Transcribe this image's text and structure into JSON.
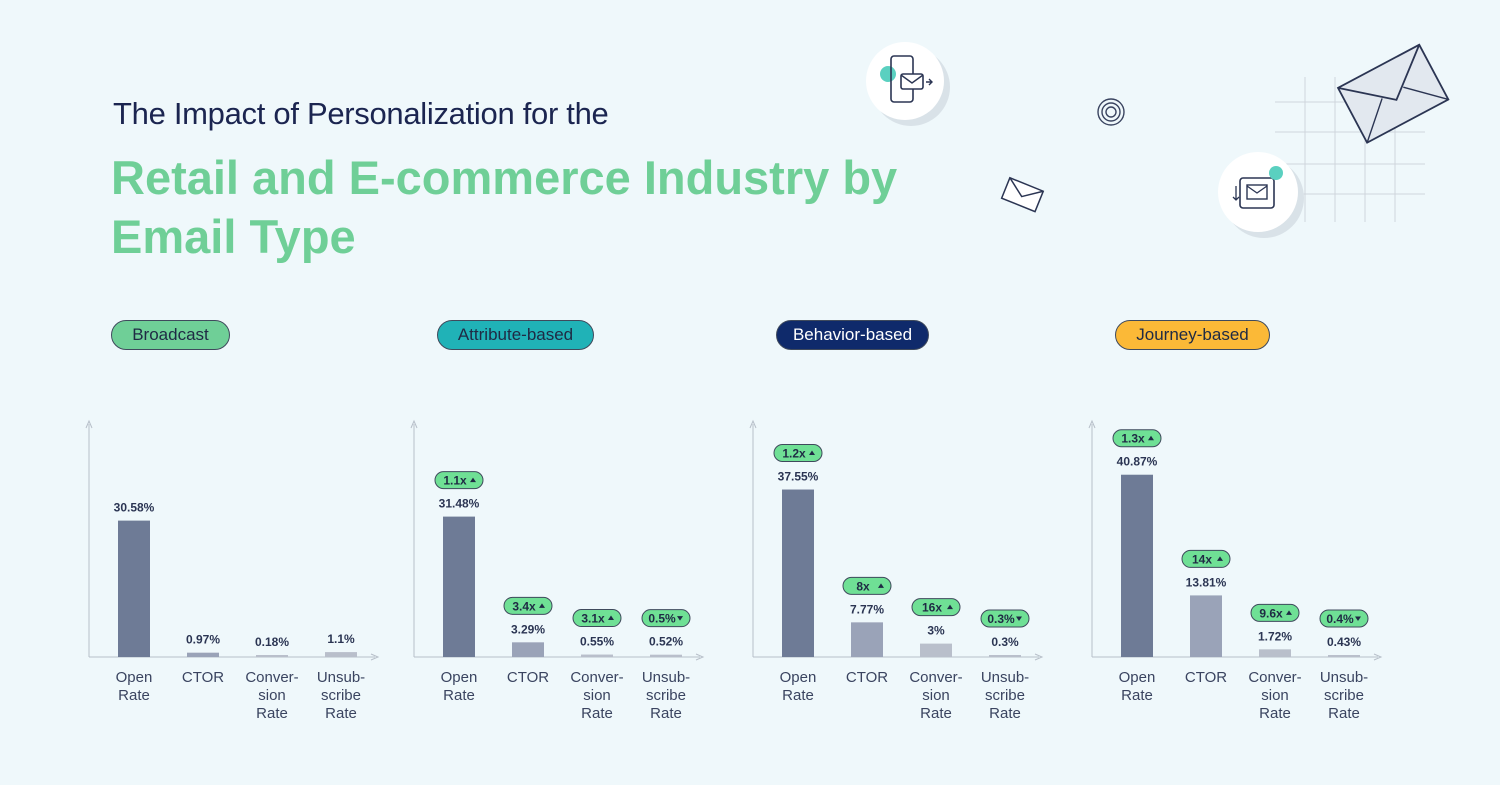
{
  "header": {
    "subtitle": "The Impact of Personalization for the",
    "title": "Retail and E-commerce Industry by Email Type"
  },
  "colors": {
    "title_green": "#6fcf97",
    "badge_green": "#6fe095",
    "bar_dark": "#6e7b96",
    "bar_mid": "#9aa3b8",
    "bar_light": "#b9bfcb"
  },
  "categories": [
    "Open Rate",
    "CTOR",
    "Conversion Rate",
    "Unsubscribe Rate"
  ],
  "chart_data": [
    {
      "type": "bar",
      "title": "Broadcast",
      "pill_color": "#6fcf97",
      "pill_text_color": "#1f2a44",
      "categories": [
        "Open Rate",
        "CTOR",
        "Conversion Rate",
        "Unsubscribe Rate"
      ],
      "values": [
        30.58,
        0.97,
        0.18,
        1.1
      ],
      "labels": [
        "30.58%",
        "0.97%",
        "0.18%",
        "1.1%"
      ],
      "badges": [
        null,
        null,
        null,
        null
      ]
    },
    {
      "type": "bar",
      "title": "Attribute-based",
      "pill_color": "#20b2b7",
      "pill_text_color": "#1f2a44",
      "categories": [
        "Open Rate",
        "CTOR",
        "Conversion Rate",
        "Unsubscribe Rate"
      ],
      "values": [
        31.48,
        3.29,
        0.55,
        0.52
      ],
      "labels": [
        "31.48%",
        "3.29%",
        "0.55%",
        "0.52%"
      ],
      "badges": [
        {
          "text": "1.1x",
          "dir": "up"
        },
        {
          "text": "3.4x",
          "dir": "up"
        },
        {
          "text": "3.1x",
          "dir": "up"
        },
        {
          "text": "0.5%",
          "dir": "down"
        }
      ]
    },
    {
      "type": "bar",
      "title": "Behavior-based",
      "pill_color": "#0f2a6b",
      "pill_text_color": "#ffffff",
      "categories": [
        "Open Rate",
        "CTOR",
        "Conversion Rate",
        "Unsubscribe Rate"
      ],
      "values": [
        37.55,
        7.77,
        3,
        0.3
      ],
      "labels": [
        "37.55%",
        "7.77%",
        "3%",
        "0.3%"
      ],
      "badges": [
        {
          "text": "1.2x",
          "dir": "up"
        },
        {
          "text": "8x",
          "dir": "up"
        },
        {
          "text": "16x",
          "dir": "up"
        },
        {
          "text": "0.3%",
          "dir": "down"
        }
      ]
    },
    {
      "type": "bar",
      "title": "Journey-based",
      "pill_color": "#fbb937",
      "pill_text_color": "#1f2a44",
      "categories": [
        "Open Rate",
        "CTOR",
        "Conversion Rate",
        "Unsubscribe Rate"
      ],
      "values": [
        40.87,
        13.81,
        1.72,
        0.43
      ],
      "labels": [
        "40.87%",
        "13.81%",
        "1.72%",
        "0.43%"
      ],
      "badges": [
        {
          "text": "1.3x",
          "dir": "up"
        },
        {
          "text": "14x",
          "dir": "up"
        },
        {
          "text": "9.6x",
          "dir": "up"
        },
        {
          "text": "0.4%",
          "dir": "down"
        }
      ]
    }
  ]
}
